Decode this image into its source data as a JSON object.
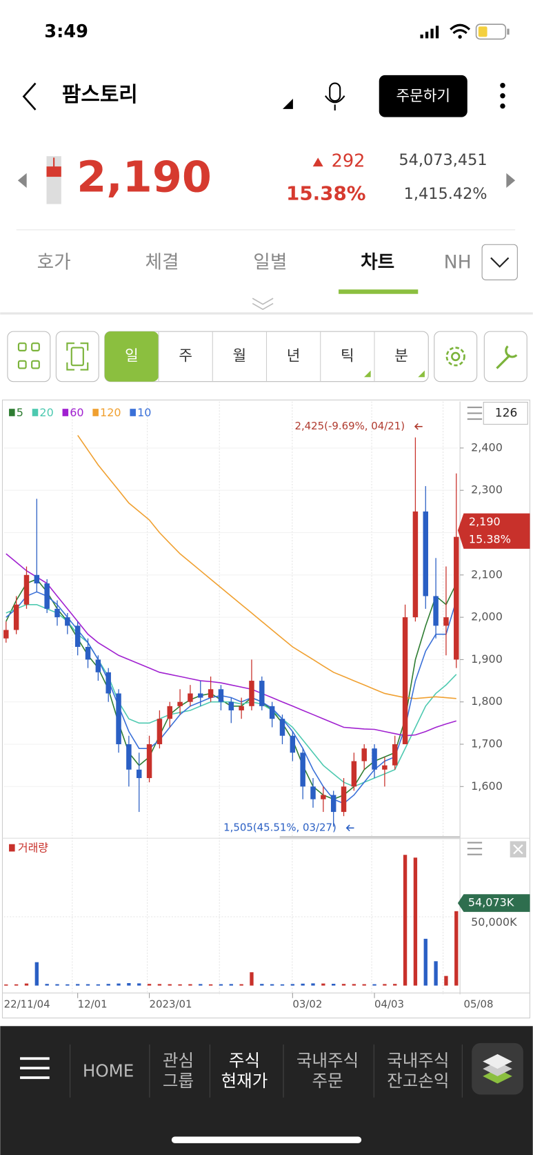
{
  "status": {
    "time": "3:49"
  },
  "header": {
    "title": "팜스토리",
    "order_button": "주문하기",
    "price": "2,190",
    "change": "292",
    "change_rate": "15.38%",
    "volume": "54,073,451",
    "volume_rate": "1,415.42%"
  },
  "tabs": [
    "호가",
    "체결",
    "일별",
    "차트",
    "NH"
  ],
  "periods": [
    "일",
    "주",
    "월",
    "년",
    "틱",
    "분"
  ],
  "chart_data": {
    "type": "candlestick",
    "categories": [
      "22/11/04",
      null,
      null,
      null,
      null,
      null,
      null,
      "12/01",
      null,
      null,
      null,
      null,
      null,
      null,
      "2023/01",
      null,
      null,
      null,
      null,
      null,
      null,
      null,
      null,
      null,
      null,
      null,
      null,
      null,
      "03/02",
      null,
      null,
      null,
      null,
      null,
      null,
      null,
      "04/03",
      null,
      null,
      null,
      null,
      null,
      null,
      null,
      "05/08"
    ],
    "candles": [
      [
        1950,
        1990,
        1940,
        1970
      ],
      [
        1970,
        2050,
        1960,
        2030
      ],
      [
        2030,
        2120,
        2020,
        2100
      ],
      [
        2100,
        2280,
        2060,
        2080
      ],
      [
        2080,
        2090,
        2010,
        2020
      ],
      [
        2020,
        2040,
        1980,
        2000
      ],
      [
        2000,
        2010,
        1960,
        1980
      ],
      [
        1980,
        1990,
        1910,
        1930
      ],
      [
        1930,
        1950,
        1880,
        1900
      ],
      [
        1900,
        1910,
        1850,
        1870
      ],
      [
        1870,
        1880,
        1800,
        1820
      ],
      [
        1820,
        1830,
        1680,
        1700
      ],
      [
        1700,
        1720,
        1600,
        1640
      ],
      [
        1640,
        1680,
        1540,
        1620
      ],
      [
        1620,
        1720,
        1610,
        1700
      ],
      [
        1700,
        1780,
        1690,
        1760
      ],
      [
        1760,
        1800,
        1740,
        1790
      ],
      [
        1790,
        1830,
        1770,
        1800
      ],
      [
        1800,
        1840,
        1790,
        1820
      ],
      [
        1820,
        1850,
        1790,
        1810
      ],
      [
        1810,
        1860,
        1800,
        1830
      ],
      [
        1830,
        1840,
        1780,
        1800
      ],
      [
        1800,
        1810,
        1750,
        1780
      ],
      [
        1780,
        1810,
        1760,
        1790
      ],
      [
        1790,
        1900,
        1780,
        1850
      ],
      [
        1850,
        1860,
        1780,
        1790
      ],
      [
        1790,
        1800,
        1740,
        1760
      ],
      [
        1760,
        1770,
        1700,
        1720
      ],
      [
        1720,
        1730,
        1660,
        1680
      ],
      [
        1680,
        1690,
        1570,
        1600
      ],
      [
        1600,
        1620,
        1550,
        1570
      ],
      [
        1570,
        1600,
        1540,
        1580
      ],
      [
        1580,
        1590,
        1505,
        1540
      ],
      [
        1540,
        1620,
        1530,
        1600
      ],
      [
        1600,
        1680,
        1590,
        1660
      ],
      [
        1660,
        1700,
        1640,
        1690
      ],
      [
        1690,
        1700,
        1620,
        1640
      ],
      [
        1640,
        1670,
        1600,
        1650
      ],
      [
        1650,
        1720,
        1640,
        1700
      ],
      [
        1700,
        2030,
        1700,
        2000
      ],
      [
        2000,
        2425,
        1990,
        2250
      ],
      [
        2250,
        2310,
        2020,
        2050
      ],
      [
        2050,
        2140,
        1950,
        1980
      ],
      [
        1980,
        2120,
        1910,
        2000
      ],
      [
        1900,
        2340,
        1880,
        2190
      ]
    ],
    "up_color": "#c8312b",
    "down_color": "#2a5fc4",
    "ylim": [
      1483,
      2510
    ],
    "yticks": [
      {
        "value": 1600,
        "label": "1,600"
      },
      {
        "value": 1700,
        "label": "1,700"
      },
      {
        "value": 1800,
        "label": "1,800"
      },
      {
        "value": 1900,
        "label": "1,900"
      },
      {
        "value": 2000,
        "label": "2,000"
      },
      {
        "value": 2100,
        "label": "2,100"
      },
      {
        "value": 2200,
        "label": "2,200"
      },
      {
        "value": 2300,
        "label": "2,300"
      },
      {
        "value": 2400,
        "label": "2,400"
      }
    ],
    "lines": [
      {
        "name": "5",
        "color": "#2e7d32",
        "values": [
          1990,
          2040,
          2080,
          2090,
          2060,
          2020,
          1990,
          1950,
          1910,
          1880,
          1830,
          1750,
          1680,
          1650,
          1670,
          1720,
          1770,
          1790,
          1805,
          1815,
          1820,
          1805,
          1790,
          1790,
          1810,
          1800,
          1780,
          1750,
          1710,
          1650,
          1600,
          1580,
          1570,
          1580,
          1600,
          1640,
          1660,
          1670,
          1680,
          1760,
          1900,
          1980,
          2050,
          2030,
          2080
        ]
      },
      {
        "name": "20",
        "color": "#4dc9b0",
        "values": [
          2010,
          2020,
          2030,
          2030,
          2020,
          2010,
          1990,
          1960,
          1940,
          1900,
          1860,
          1800,
          1760,
          1750,
          1750,
          1760,
          1770,
          1775,
          1780,
          1790,
          1800,
          1800,
          1800,
          1795,
          1800,
          1795,
          1780,
          1760,
          1740,
          1710,
          1680,
          1650,
          1630,
          1610,
          1600,
          1610,
          1620,
          1630,
          1640,
          1690,
          1740,
          1790,
          1820,
          1840,
          1865
        ]
      },
      {
        "name": "60",
        "color": "#a020d0",
        "values": [
          2150,
          2130,
          2110,
          2095,
          2080,
          2050,
          2020,
          1990,
          1960,
          1940,
          1925,
          1910,
          1900,
          1890,
          1880,
          1870,
          1865,
          1860,
          1855,
          1850,
          1848,
          1845,
          1840,
          1835,
          1830,
          1820,
          1810,
          1800,
          1790,
          1780,
          1770,
          1760,
          1750,
          1740,
          1738,
          1736,
          1735,
          1730,
          1725,
          1720,
          1722,
          1730,
          1740,
          1748,
          1755
        ]
      },
      {
        "name": "120",
        "color": "#f0a030",
        "values": [
          null,
          null,
          null,
          null,
          null,
          null,
          null,
          2430,
          2395,
          2360,
          2330,
          2300,
          2270,
          2250,
          2230,
          2200,
          2175,
          2150,
          2130,
          2110,
          2090,
          2070,
          2050,
          2030,
          2010,
          1990,
          1970,
          1950,
          1930,
          1915,
          1900,
          1885,
          1870,
          1860,
          1850,
          1840,
          1830,
          1820,
          1815,
          1810,
          1808,
          1810,
          1812,
          1810,
          1808
        ]
      },
      {
        "name": "10",
        "color": "#3a70d8",
        "values": [
          2000,
          2020,
          2050,
          2060,
          2050,
          2030,
          2000,
          1970,
          1940,
          1900,
          1850,
          1790,
          1730,
          1690,
          1690,
          1710,
          1740,
          1770,
          1790,
          1800,
          1810,
          1815,
          1810,
          1800,
          1810,
          1800,
          1785,
          1760,
          1730,
          1690,
          1640,
          1600,
          1570,
          1560,
          1580,
          1610,
          1640,
          1660,
          1670,
          1740,
          1850,
          1920,
          1960,
          1960,
          2040
        ]
      }
    ],
    "period_count": 126,
    "high_label": "2,425(-9.69%, 04/21)",
    "low_label": "1,505(45.51%, 03/27)",
    "last_price_label": "2,190",
    "last_rate_label": "15.38%",
    "volume": {
      "title": "거래량",
      "values": [
        800,
        900,
        1500,
        17000,
        1200,
        1000,
        900,
        1100,
        1000,
        900,
        1200,
        1500,
        1800,
        1600,
        1200,
        1100,
        1000,
        900,
        1000,
        1100,
        900,
        1000,
        1100,
        1000,
        9700,
        1200,
        1000,
        900,
        1100,
        1400,
        1600,
        1500,
        1300,
        1200,
        1100,
        1000,
        1000,
        1100,
        1200,
        95000,
        93000,
        34000,
        17700,
        7000,
        54073
      ],
      "ylim": [
        0,
        106000
      ],
      "yticks": [
        {
          "value": 50000,
          "label": "50,000K"
        }
      ],
      "last_label": "54,073K"
    }
  },
  "nav": [
    "HOME",
    "관심\n그룹",
    "주식\n현재가",
    "국내주식\n주문",
    "국내주식\n잔고손익"
  ]
}
